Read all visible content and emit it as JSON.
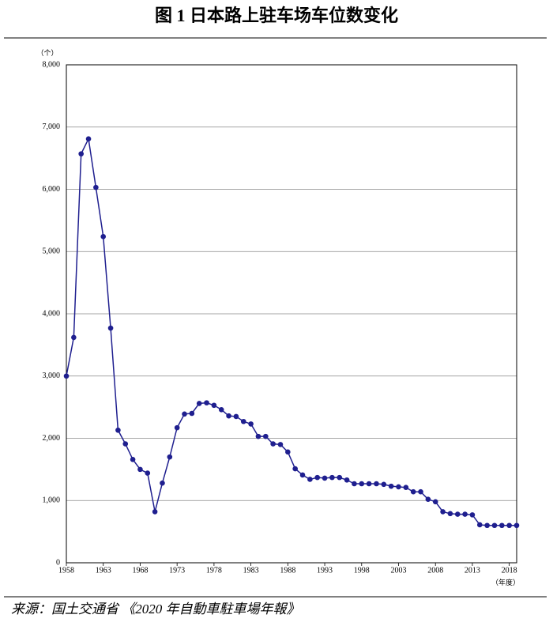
{
  "chart_data": {
    "type": "line",
    "title": "图 1  日本路上驻车场车位数变化",
    "y_unit": "（个）",
    "x_unit": "（年度）",
    "source": "来源：国土交通省 《2020 年自動車駐車場年報》",
    "x": [
      1958,
      1959,
      1960,
      1961,
      1962,
      1963,
      1964,
      1965,
      1966,
      1967,
      1968,
      1969,
      1970,
      1971,
      1972,
      1973,
      1974,
      1975,
      1976,
      1977,
      1978,
      1979,
      1980,
      1981,
      1982,
      1983,
      1984,
      1985,
      1986,
      1987,
      1988,
      1989,
      1990,
      1991,
      1992,
      1993,
      1994,
      1995,
      1996,
      1997,
      1998,
      1999,
      2000,
      2001,
      2002,
      2003,
      2004,
      2005,
      2006,
      2007,
      2008,
      2009,
      2010,
      2011,
      2012,
      2013,
      2014,
      2015,
      2016,
      2017,
      2018,
      2019
    ],
    "values": [
      3000,
      3620,
      6570,
      6810,
      6030,
      5240,
      3770,
      2130,
      1910,
      1660,
      1500,
      1440,
      820,
      1280,
      1700,
      2170,
      2390,
      2400,
      2560,
      2570,
      2530,
      2460,
      2360,
      2350,
      2270,
      2230,
      2030,
      2030,
      1910,
      1900,
      1780,
      1510,
      1410,
      1340,
      1370,
      1360,
      1370,
      1370,
      1330,
      1270,
      1270,
      1270,
      1270,
      1260,
      1230,
      1220,
      1210,
      1140,
      1140,
      1020,
      980,
      820,
      790,
      780,
      780,
      770,
      610,
      600,
      600,
      600,
      600,
      600
    ],
    "color": "#1f1f8f",
    "xlim": [
      1958,
      2019
    ],
    "xticks": [
      1958,
      1963,
      1968,
      1973,
      1978,
      1983,
      1988,
      1993,
      1998,
      2003,
      2008,
      2013,
      2018
    ],
    "ylim": [
      0,
      8000
    ],
    "yticks": [
      0,
      {
        "value": 1000,
        "label": "1,000"
      },
      {
        "value": 2000,
        "label": "2,000"
      },
      {
        "value": 3000,
        "label": "3,000"
      },
      {
        "value": 4000,
        "label": "4,000"
      },
      {
        "value": 5000,
        "label": "5,000"
      },
      {
        "value": 6000,
        "label": "6,000"
      },
      {
        "value": 7000,
        "label": "7,000"
      },
      {
        "value": 8000,
        "label": "8,000"
      }
    ],
    "grid": true
  }
}
